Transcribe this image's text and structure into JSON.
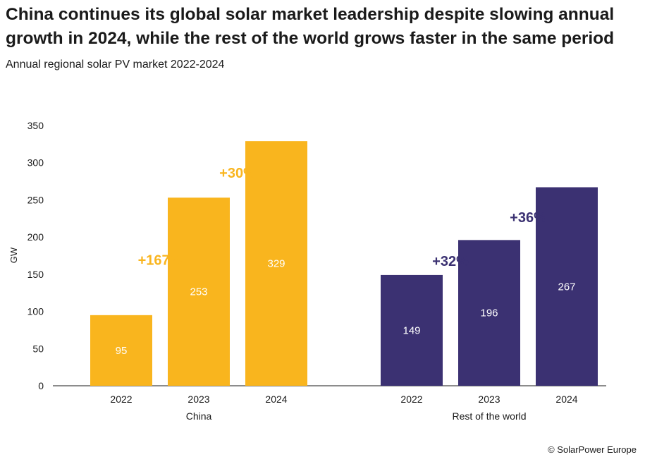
{
  "title": "China continues its global solar market leadership despite slowing annual growth in 2024, while the rest of the world grows faster in the same period",
  "subtitle": "Annual regional solar PV market 2022-2024",
  "credit": "© SolarPower Europe",
  "chart_data": {
    "type": "bar",
    "ylabel": "GW",
    "ylim": [
      0,
      350
    ],
    "yticks": [
      0,
      50,
      100,
      150,
      200,
      250,
      300,
      350
    ],
    "grid": false,
    "groups": [
      {
        "name": "China",
        "color": "#F9B51E",
        "categories": [
          "2022",
          "2023",
          "2024"
        ],
        "values": [
          95,
          253,
          329
        ],
        "value_labels": [
          "95",
          "253",
          "329"
        ],
        "growth_labels": [
          "+167%",
          "+30%"
        ]
      },
      {
        "name": "Rest of the world",
        "color": "#3B3172",
        "categories": [
          "2022",
          "2023",
          "2024"
        ],
        "values": [
          149,
          196,
          267
        ],
        "value_labels": [
          "149",
          "196",
          "267"
        ],
        "growth_labels": [
          "+32%",
          "+36%"
        ]
      }
    ]
  }
}
